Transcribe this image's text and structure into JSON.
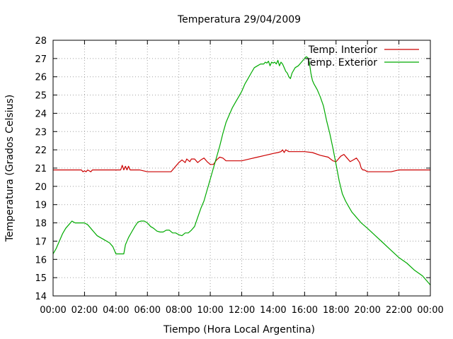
{
  "chart_data": {
    "type": "line",
    "title": "Temperatura 29/04/2009",
    "xlabel": "Tiempo (Hora Local Argentina)",
    "ylabel": "Temperatura (Grados Celsius)",
    "xlim": [
      0,
      24
    ],
    "ylim": [
      14,
      28
    ],
    "x_tick_values": [
      0,
      2,
      4,
      6,
      8,
      10,
      12,
      14,
      16,
      18,
      20,
      22,
      24
    ],
    "x_tick_labels": [
      "00:00",
      "02:00",
      "04:00",
      "06:00",
      "08:00",
      "10:00",
      "12:00",
      "14:00",
      "16:00",
      "18:00",
      "20:00",
      "22:00",
      "00:00"
    ],
    "y_ticks": [
      14,
      15,
      16,
      17,
      18,
      19,
      20,
      21,
      22,
      23,
      24,
      25,
      26,
      27,
      28
    ],
    "grid": true,
    "legend_position": "top-right",
    "series": [
      {
        "name": "Temp. Interior",
        "color": "#cc0000",
        "x": [
          0,
          1.8,
          1.9,
          2.0,
          2.1,
          2.2,
          2.4,
          2.5,
          3.0,
          4.0,
          4.3,
          4.4,
          4.5,
          4.6,
          4.7,
          4.8,
          4.9,
          5.0,
          5.5,
          6.0,
          7.0,
          7.5,
          7.6,
          7.8,
          8.0,
          8.2,
          8.4,
          8.5,
          8.7,
          8.8,
          9.0,
          9.2,
          9.4,
          9.6,
          9.8,
          10.0,
          10.2,
          10.4,
          10.6,
          10.8,
          11.0,
          11.5,
          12.0,
          12.5,
          13.0,
          13.5,
          14.0,
          14.3,
          14.5,
          14.6,
          14.7,
          14.8,
          15.0,
          15.5,
          16.0,
          16.5,
          17.0,
          17.5,
          17.8,
          18.0,
          18.1,
          18.3,
          18.5,
          18.7,
          18.9,
          19.1,
          19.3,
          19.5,
          19.6,
          19.7,
          19.8,
          20.0,
          20.5,
          21.0,
          21.5,
          22.0,
          23.0,
          24.0
        ],
        "values": [
          20.9,
          20.9,
          20.8,
          20.85,
          20.8,
          20.9,
          20.8,
          20.9,
          20.9,
          20.9,
          20.9,
          21.15,
          20.9,
          21.1,
          20.9,
          21.1,
          20.9,
          20.9,
          20.9,
          20.8,
          20.8,
          20.8,
          20.9,
          21.1,
          21.3,
          21.45,
          21.3,
          21.5,
          21.35,
          21.5,
          21.5,
          21.3,
          21.45,
          21.55,
          21.35,
          21.2,
          21.2,
          21.45,
          21.6,
          21.55,
          21.4,
          21.4,
          21.4,
          21.5,
          21.6,
          21.7,
          21.8,
          21.85,
          21.9,
          22.0,
          21.85,
          22.0,
          21.9,
          21.9,
          21.9,
          21.85,
          21.7,
          21.6,
          21.4,
          21.35,
          21.45,
          21.65,
          21.75,
          21.55,
          21.35,
          21.45,
          21.55,
          21.3,
          21.0,
          20.9,
          20.9,
          20.8,
          20.8,
          20.8,
          20.8,
          20.9,
          20.9,
          20.9
        ]
      },
      {
        "name": "Temp. Exterior",
        "color": "#00aa00",
        "x": [
          0,
          0.2,
          0.4,
          0.6,
          0.8,
          1.0,
          1.2,
          1.4,
          1.6,
          1.8,
          2.0,
          2.2,
          2.4,
          2.6,
          2.8,
          3.0,
          3.2,
          3.4,
          3.6,
          3.8,
          4.0,
          4.2,
          4.4,
          4.5,
          4.6,
          4.8,
          5.0,
          5.2,
          5.4,
          5.6,
          5.8,
          6.0,
          6.2,
          6.4,
          6.6,
          6.8,
          7.0,
          7.2,
          7.4,
          7.6,
          7.8,
          8.0,
          8.2,
          8.4,
          8.6,
          8.8,
          9.0,
          9.2,
          9.4,
          9.6,
          9.8,
          10.0,
          10.2,
          10.4,
          10.6,
          10.8,
          11.0,
          11.2,
          11.4,
          11.6,
          11.8,
          12.0,
          12.2,
          12.4,
          12.6,
          12.8,
          13.0,
          13.2,
          13.4,
          13.5,
          13.6,
          13.7,
          13.8,
          13.9,
          14.0,
          14.1,
          14.2,
          14.3,
          14.4,
          14.5,
          14.6,
          14.7,
          14.8,
          14.9,
          15.0,
          15.1,
          15.2,
          15.4,
          15.6,
          15.8,
          16.0,
          16.1,
          16.2,
          16.3,
          16.4,
          16.5,
          16.6,
          16.8,
          17.0,
          17.2,
          17.4,
          17.6,
          17.8,
          18.0,
          18.2,
          18.4,
          18.6,
          18.8,
          19.0,
          19.2,
          19.4,
          19.6,
          19.8,
          20.0,
          20.5,
          21.0,
          21.5,
          22.0,
          22.5,
          23.0,
          23.5,
          24.0
        ],
        "values": [
          16.3,
          16.6,
          17.0,
          17.4,
          17.7,
          17.9,
          18.1,
          18.0,
          18.0,
          18.0,
          18.0,
          17.9,
          17.7,
          17.5,
          17.3,
          17.2,
          17.1,
          17.0,
          16.9,
          16.7,
          16.3,
          16.3,
          16.3,
          16.3,
          16.8,
          17.2,
          17.5,
          17.8,
          18.05,
          18.1,
          18.1,
          18.0,
          17.8,
          17.7,
          17.55,
          17.5,
          17.5,
          17.6,
          17.6,
          17.45,
          17.45,
          17.35,
          17.3,
          17.45,
          17.45,
          17.6,
          17.8,
          18.3,
          18.8,
          19.2,
          19.8,
          20.4,
          21.0,
          21.6,
          22.2,
          22.9,
          23.5,
          23.9,
          24.3,
          24.6,
          24.9,
          25.2,
          25.6,
          25.9,
          26.2,
          26.5,
          26.6,
          26.7,
          26.7,
          26.8,
          26.75,
          26.85,
          26.6,
          26.8,
          26.75,
          26.8,
          26.7,
          26.9,
          26.6,
          26.8,
          26.7,
          26.5,
          26.3,
          26.2,
          26.0,
          25.9,
          26.2,
          26.5,
          26.6,
          26.8,
          27.0,
          27.1,
          27.05,
          26.8,
          26.2,
          25.8,
          25.6,
          25.3,
          24.9,
          24.4,
          23.6,
          22.9,
          22.1,
          21.2,
          20.3,
          19.6,
          19.2,
          18.9,
          18.6,
          18.4,
          18.2,
          18.0,
          17.85,
          17.7,
          17.3,
          16.9,
          16.5,
          16.1,
          15.8,
          15.4,
          15.1,
          14.6
        ]
      }
    ]
  }
}
